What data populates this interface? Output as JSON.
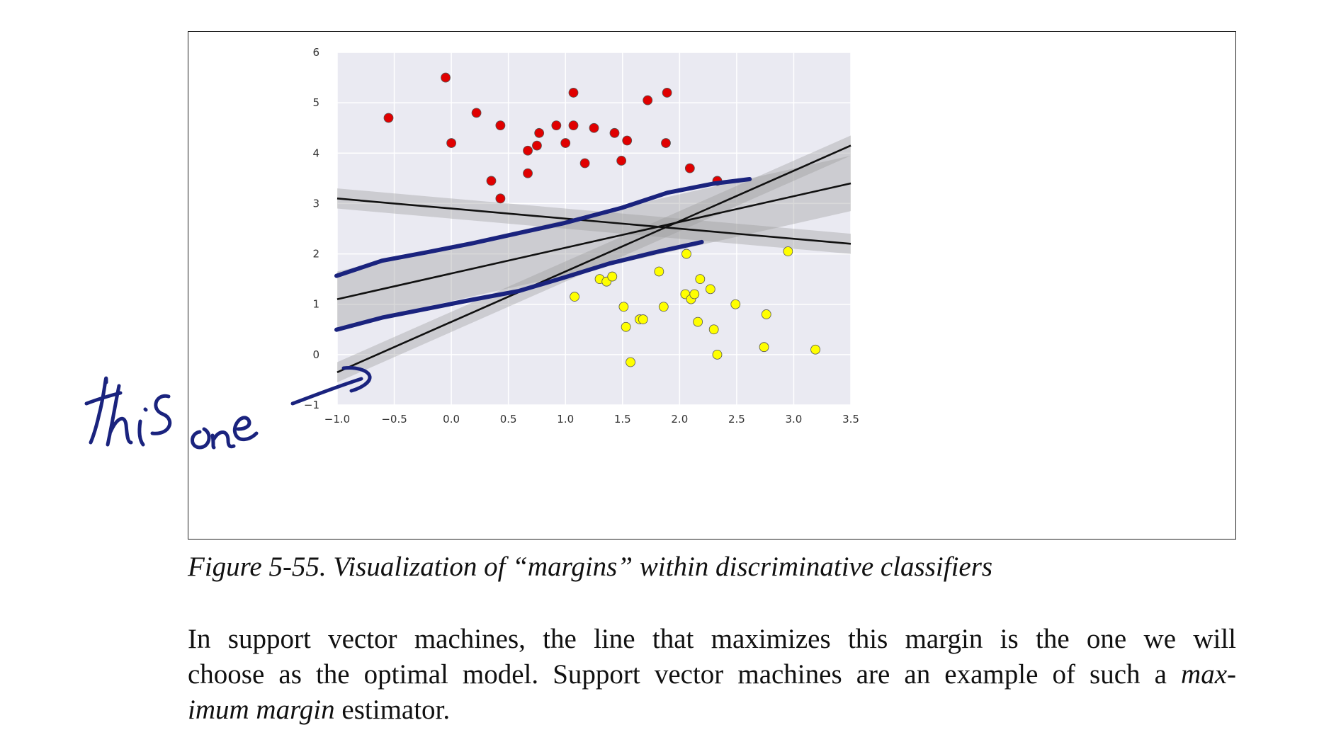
{
  "figure": {
    "caption": "Figure 5-55. Visualization of “margins” within discriminative classifiers"
  },
  "annotation": {
    "handwriting_1": "this",
    "handwriting_2": "one",
    "ink_color": "#1a237e"
  },
  "paragraph": {
    "line1": "In support vector machines, the line that maximizes this margin is the one we will",
    "line2_a": "choose as the optimal model. Support vector machines are an example of such a ",
    "line2_b": "max-",
    "line3_a": "imum margin",
    "line3_b": " estimator."
  },
  "chart_data": {
    "type": "scatter",
    "title": "",
    "xlabel": "",
    "ylabel": "",
    "xlim": [
      -1.0,
      3.5
    ],
    "ylim": [
      -1,
      6
    ],
    "x_ticks": [
      "−1.0",
      "−0.5",
      "0.0",
      "0.5",
      "1.0",
      "1.5",
      "2.0",
      "2.5",
      "3.0",
      "3.5"
    ],
    "x_tick_values": [
      -1.0,
      -0.5,
      0.0,
      0.5,
      1.0,
      1.5,
      2.0,
      2.5,
      3.0,
      3.5
    ],
    "y_ticks": [
      "−1",
      "0",
      "1",
      "2",
      "3",
      "4",
      "5",
      "6"
    ],
    "y_tick_values": [
      -1,
      0,
      1,
      2,
      3,
      4,
      5,
      6
    ],
    "grid": true,
    "background": "#eaeaf2",
    "series": [
      {
        "color": "#e00000",
        "points": [
          [
            -0.55,
            4.7
          ],
          [
            -0.05,
            5.5
          ],
          [
            0.0,
            4.2
          ],
          [
            0.22,
            4.8
          ],
          [
            0.35,
            3.45
          ],
          [
            0.43,
            4.55
          ],
          [
            0.43,
            3.1
          ],
          [
            0.67,
            4.05
          ],
          [
            0.67,
            3.6
          ],
          [
            0.75,
            4.15
          ],
          [
            0.77,
            4.4
          ],
          [
            0.92,
            4.55
          ],
          [
            1.0,
            4.2
          ],
          [
            1.07,
            5.2
          ],
          [
            1.07,
            4.55
          ],
          [
            1.17,
            3.8
          ],
          [
            1.25,
            4.5
          ],
          [
            1.43,
            4.4
          ],
          [
            1.49,
            3.85
          ],
          [
            1.54,
            4.25
          ],
          [
            1.72,
            5.05
          ],
          [
            1.89,
            5.2
          ],
          [
            1.88,
            4.2
          ],
          [
            2.09,
            3.7
          ],
          [
            2.33,
            3.45
          ]
        ]
      },
      {
        "color": "#ffff00",
        "points": [
          [
            1.08,
            1.15
          ],
          [
            1.3,
            1.5
          ],
          [
            1.36,
            1.45
          ],
          [
            1.41,
            1.55
          ],
          [
            1.51,
            0.95
          ],
          [
            1.53,
            0.55
          ],
          [
            1.57,
            -0.15
          ],
          [
            1.65,
            0.7
          ],
          [
            1.68,
            0.7
          ],
          [
            1.82,
            1.65
          ],
          [
            1.86,
            0.95
          ],
          [
            2.05,
            1.2
          ],
          [
            2.06,
            2.0
          ],
          [
            2.1,
            1.1
          ],
          [
            2.13,
            1.2
          ],
          [
            2.16,
            0.65
          ],
          [
            2.18,
            1.5
          ],
          [
            2.27,
            1.3
          ],
          [
            2.3,
            0.5
          ],
          [
            2.33,
            0.0
          ],
          [
            2.49,
            1.0
          ],
          [
            2.74,
            0.15
          ],
          [
            2.76,
            0.8
          ],
          [
            2.95,
            2.05
          ],
          [
            3.19,
            0.1
          ]
        ]
      }
    ],
    "lines": [
      {
        "x": [
          -1.0,
          3.5
        ],
        "y": [
          3.1,
          2.2
        ],
        "band_halfwidth": 0.2
      },
      {
        "x": [
          -1.0,
          3.5
        ],
        "y": [
          1.1,
          3.4
        ],
        "band_halfwidth": 0.55
      },
      {
        "x": [
          -1.0,
          3.5
        ],
        "y": [
          -0.35,
          4.15
        ],
        "band_halfwidth": 0.2
      }
    ],
    "handdrawn_curves": [
      {
        "x": [
          -1.0,
          -0.6,
          -0.2,
          0.2,
          0.6,
          1.0,
          1.5,
          1.9,
          2.3,
          2.62
        ],
        "y": [
          1.55,
          1.85,
          2.02,
          2.2,
          2.4,
          2.6,
          2.9,
          3.2,
          3.38,
          3.47
        ]
      },
      {
        "x": [
          -1.0,
          -0.6,
          -0.2,
          0.2,
          0.6,
          1.0,
          1.4,
          1.8,
          2.2
        ],
        "y": [
          0.48,
          0.72,
          0.9,
          1.08,
          1.25,
          1.52,
          1.8,
          2.02,
          2.22
        ]
      }
    ]
  }
}
